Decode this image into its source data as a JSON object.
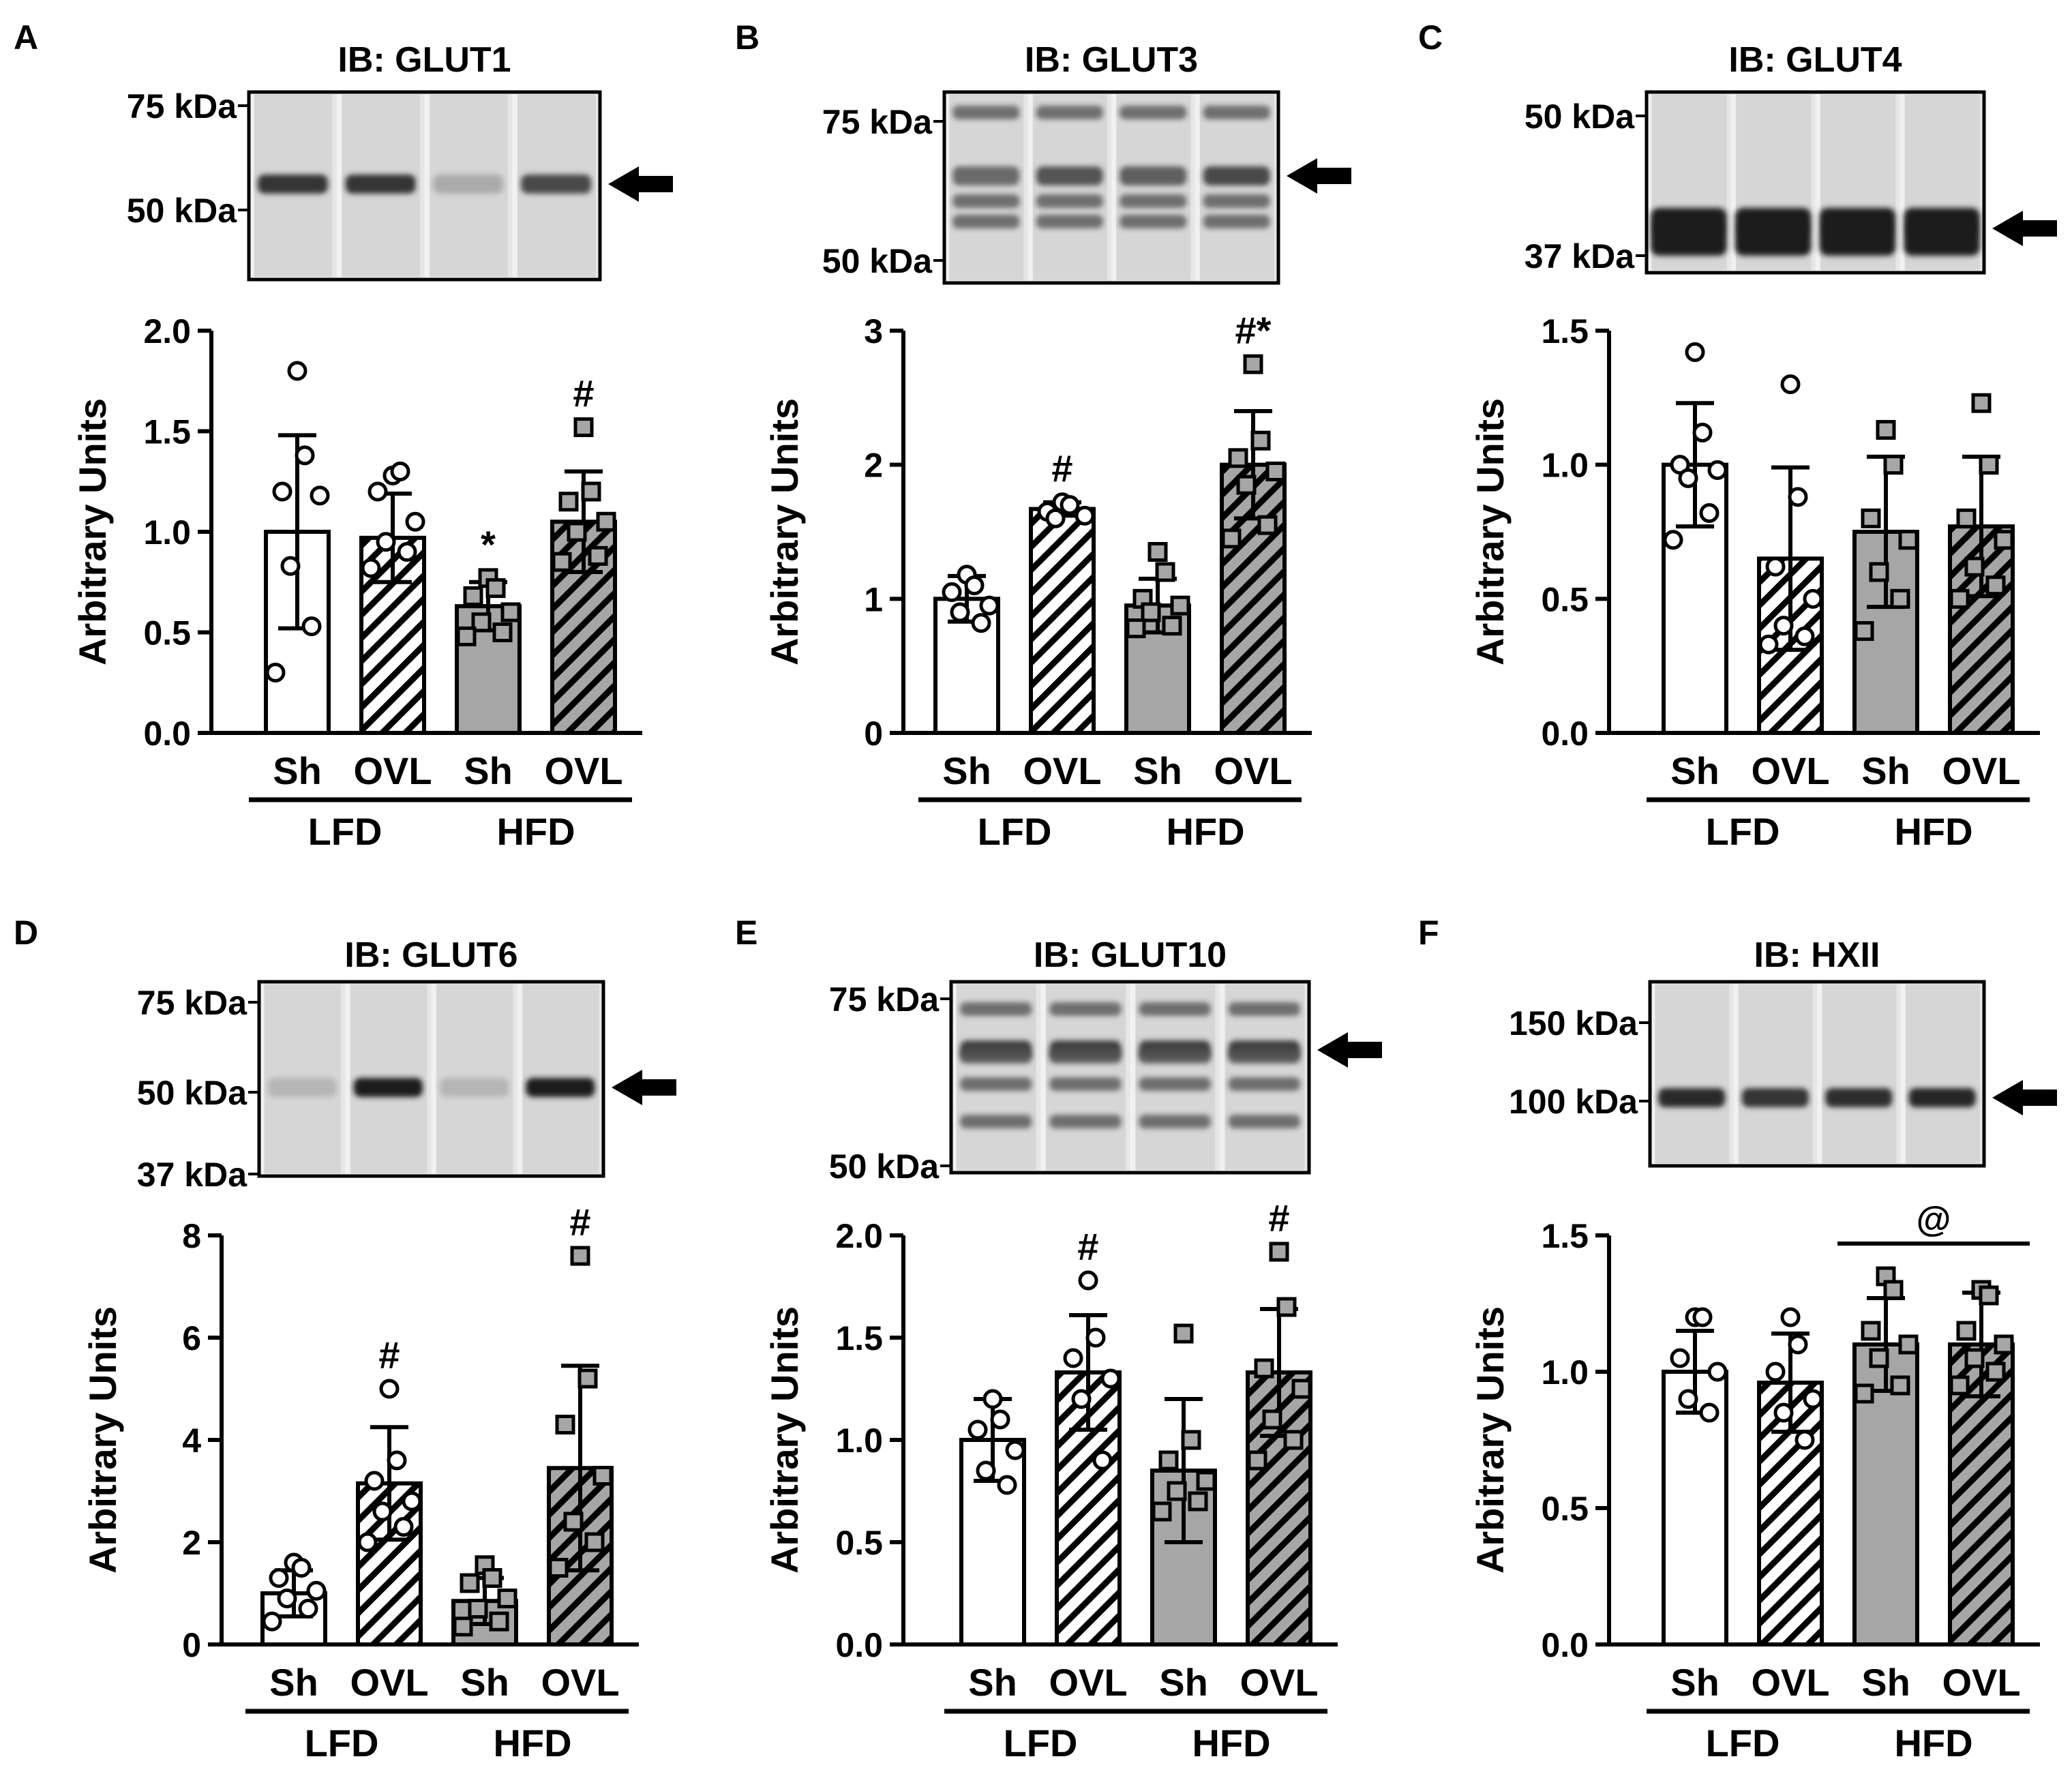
{
  "colors": {
    "sham_fill": "#ffffff",
    "hfd_fill": "#a6a6a6",
    "ink": "#000000",
    "hatch_light": "#ffffff",
    "hatch_dark": "#a6a6a6"
  },
  "categories": [
    "Sh",
    "OVL",
    "Sh",
    "OVL"
  ],
  "diet_groups": [
    "LFD",
    "HFD"
  ],
  "chart_data": [
    {
      "panel": "A",
      "type": "bar",
      "title": "IB: GLUT1",
      "ylabel": "Arbitrary Units",
      "ylim": [
        0,
        2.0
      ],
      "yticks": [
        "0.0",
        "0.5",
        "1.0",
        "1.5",
        "2.0"
      ],
      "categories": [
        "Sh",
        "OVL",
        "Sh",
        "OVL"
      ],
      "groups": [
        "LFD",
        "HFD"
      ],
      "values": [
        1.0,
        0.97,
        0.63,
        1.05
      ],
      "sd": [
        0.48,
        0.22,
        0.12,
        0.25
      ],
      "points": [
        [
          1.8,
          1.38,
          1.2,
          1.18,
          0.83,
          0.53,
          0.3
        ],
        [
          1.28,
          1.3,
          1.2,
          1.05,
          0.95,
          0.9,
          0.82
        ],
        [
          0.77,
          0.72,
          0.68,
          0.6,
          0.55,
          0.5,
          0.48
        ],
        [
          1.52,
          1.2,
          1.15,
          1.05,
          1.0,
          0.88,
          0.85
        ]
      ],
      "annotations": [
        "",
        "",
        "*",
        "#"
      ],
      "blot": {
        "markers": [
          "75 kDa",
          "50 kDa"
        ],
        "band_row": [
          0.85,
          0.85,
          0.3,
          0.75
        ]
      }
    },
    {
      "panel": "B",
      "type": "bar",
      "title": "IB: GLUT3",
      "ylabel": "Arbitrary Units",
      "ylim": [
        0,
        3
      ],
      "yticks": [
        "0",
        "1",
        "2",
        "3"
      ],
      "categories": [
        "Sh",
        "OVL",
        "Sh",
        "OVL"
      ],
      "groups": [
        "LFD",
        "HFD"
      ],
      "values": [
        1.0,
        1.67,
        0.95,
        2.0
      ],
      "sd": [
        0.17,
        0.05,
        0.2,
        0.4
      ],
      "points": [
        [
          1.18,
          1.1,
          1.05,
          0.95,
          0.9,
          0.82
        ],
        [
          1.72,
          1.7,
          1.65,
          1.62,
          1.6
        ],
        [
          1.35,
          1.2,
          1.0,
          0.95,
          0.9,
          0.8,
          0.78
        ],
        [
          2.75,
          2.18,
          2.05,
          1.95,
          1.85,
          1.55,
          1.45
        ]
      ],
      "annotations": [
        "",
        "#",
        "",
        "#*"
      ],
      "blot": {
        "markers": [
          "75 kDa",
          "50 kDa"
        ],
        "band_row": [
          0.6,
          0.7,
          0.65,
          0.75
        ]
      }
    },
    {
      "panel": "C",
      "type": "bar",
      "title": "IB: GLUT4",
      "ylabel": "Arbitrary Units",
      "ylim": [
        0,
        1.5
      ],
      "yticks": [
        "0.0",
        "0.5",
        "1.0",
        "1.5"
      ],
      "categories": [
        "Sh",
        "OVL",
        "Sh",
        "OVL"
      ],
      "groups": [
        "LFD",
        "HFD"
      ],
      "values": [
        1.0,
        0.65,
        0.75,
        0.77
      ],
      "sd": [
        0.23,
        0.34,
        0.28,
        0.26
      ],
      "points": [
        [
          1.42,
          1.12,
          1.0,
          0.98,
          0.95,
          0.82,
          0.72
        ],
        [
          1.3,
          0.88,
          0.62,
          0.5,
          0.4,
          0.36,
          0.33
        ],
        [
          1.13,
          1.0,
          0.8,
          0.72,
          0.6,
          0.5,
          0.38
        ],
        [
          1.23,
          1.0,
          0.8,
          0.72,
          0.62,
          0.55,
          0.5
        ]
      ],
      "annotations": [
        "",
        "",
        "",
        ""
      ],
      "blot": {
        "markers": [
          "50 kDa",
          "37 kDa"
        ],
        "band_row": [
          0.95,
          0.95,
          0.9,
          0.95
        ]
      }
    },
    {
      "panel": "D",
      "type": "bar",
      "title": "IB: GLUT6",
      "ylabel": "Arbitrary Units",
      "ylim": [
        0,
        8
      ],
      "yticks": [
        "0",
        "2",
        "4",
        "6",
        "8"
      ],
      "categories": [
        "Sh",
        "OVL",
        "Sh",
        "OVL"
      ],
      "groups": [
        "LFD",
        "HFD"
      ],
      "values": [
        1.0,
        3.15,
        0.85,
        3.45
      ],
      "sd": [
        0.45,
        1.1,
        0.45,
        2.0
      ],
      "points": [
        [
          1.6,
          1.5,
          1.3,
          1.05,
          0.9,
          0.7,
          0.45
        ],
        [
          5.0,
          3.6,
          3.2,
          2.8,
          2.6,
          2.3,
          2.0
        ],
        [
          1.55,
          1.3,
          1.2,
          0.9,
          0.7,
          0.45,
          0.35
        ],
        [
          7.6,
          5.2,
          4.3,
          3.3,
          2.4,
          2.0,
          1.5
        ]
      ],
      "annotations": [
        "",
        "#",
        "",
        "#"
      ],
      "blot": {
        "markers": [
          "75 kDa",
          "50 kDa",
          "37 kDa"
        ],
        "band_row": [
          0.25,
          0.95,
          0.25,
          0.95
        ]
      }
    },
    {
      "panel": "E",
      "type": "bar",
      "title": "IB: GLUT10",
      "ylabel": "Arbitrary Units",
      "ylim": [
        0,
        2.0
      ],
      "yticks": [
        "0.0",
        "0.5",
        "1.0",
        "1.5",
        "2.0"
      ],
      "categories": [
        "Sh",
        "OVL",
        "Sh",
        "OVL"
      ],
      "groups": [
        "LFD",
        "HFD"
      ],
      "values": [
        1.0,
        1.33,
        0.85,
        1.33
      ],
      "sd": [
        0.2,
        0.28,
        0.35,
        0.31
      ],
      "points": [
        [
          1.2,
          1.1,
          1.05,
          0.95,
          0.85,
          0.78
        ],
        [
          1.78,
          1.5,
          1.4,
          1.3,
          1.2,
          0.9
        ],
        [
          1.52,
          1.0,
          0.9,
          0.8,
          0.75,
          0.7,
          0.65
        ],
        [
          1.92,
          1.65,
          1.35,
          1.25,
          1.1,
          1.0,
          0.9
        ]
      ],
      "annotations": [
        "",
        "#",
        "",
        "#"
      ],
      "blot": {
        "markers": [
          "75 kDa",
          "50 kDa"
        ],
        "band_row": [
          0.8,
          0.8,
          0.8,
          0.8
        ]
      }
    },
    {
      "panel": "F",
      "type": "bar",
      "title": "IB: HXII",
      "ylabel": "Arbitrary Units",
      "ylim": [
        0,
        1.5
      ],
      "yticks": [
        "0.0",
        "0.5",
        "1.0",
        "1.5"
      ],
      "categories": [
        "Sh",
        "OVL",
        "Sh",
        "OVL"
      ],
      "groups": [
        "LFD",
        "HFD"
      ],
      "values": [
        1.0,
        0.96,
        1.1,
        1.1
      ],
      "sd": [
        0.15,
        0.18,
        0.17,
        0.19
      ],
      "points": [
        [
          1.2,
          1.2,
          1.05,
          1.0,
          0.9,
          0.85
        ],
        [
          1.2,
          1.1,
          1.0,
          0.9,
          0.85,
          0.75
        ],
        [
          1.35,
          1.3,
          1.15,
          1.1,
          1.05,
          0.95,
          0.92
        ],
        [
          1.3,
          1.28,
          1.15,
          1.1,
          1.05,
          1.0,
          0.95
        ]
      ],
      "annotations": [
        "",
        "",
        "",
        ""
      ],
      "bracket_annotation": "@",
      "blot": {
        "markers": [
          "150 kDa",
          "100 kDa"
        ],
        "band_row": [
          0.9,
          0.85,
          0.88,
          0.92
        ]
      }
    }
  ]
}
